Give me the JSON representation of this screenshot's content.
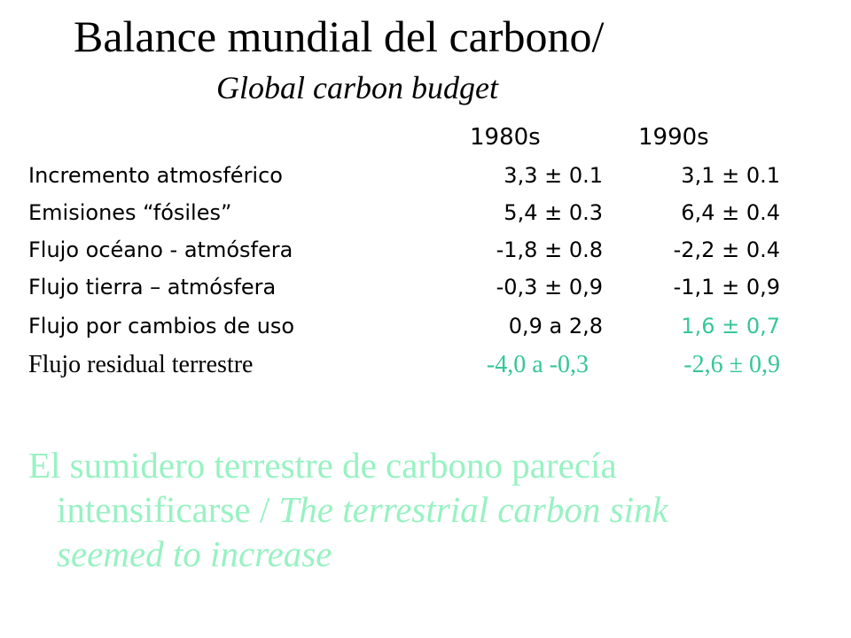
{
  "title": "Balance mundial del carbono/",
  "subtitle": "Global carbon budget",
  "columns": [
    "1980s",
    "1990s"
  ],
  "rows": [
    {
      "label": "Incremento atmosférico",
      "v1980s": "3,3 ± 0.1",
      "v1990s": "3,1 ± 0.1"
    },
    {
      "label": "Emisiones “fósiles”",
      "v1980s": "5,4 ± 0.3",
      "v1990s": "6,4 ± 0.4"
    },
    {
      "label": "Flujo océano - atmósfera",
      "v1980s": "-1,8 ± 0.8",
      "v1990s": "-2,2 ± 0.4"
    },
    {
      "label": "Flujo tierra – atmósfera",
      "v1980s": "-0,3 ± 0,9",
      "v1990s": "-1,1 ± 0,9"
    },
    {
      "label": "Flujo por cambios de uso",
      "v1980s": "0,9 a 2,8",
      "v1990s": "1,6 ± 0,7"
    },
    {
      "label": "Flujo residual terrestre",
      "v1980s": "-4,0 a -0,3",
      "v1990s": "-2,6 ± 0,9"
    }
  ],
  "conclusion": {
    "line1": "El sumidero terrestre de carbono parecía",
    "line2_plain": "intensificarse / ",
    "line2_italic": "The terrestrial carbon sink",
    "line3_italic": "seemed to increase"
  },
  "colors": {
    "text": "#000000",
    "highlight_green": "#35c795",
    "conclusion_green": "#98f2c2"
  }
}
